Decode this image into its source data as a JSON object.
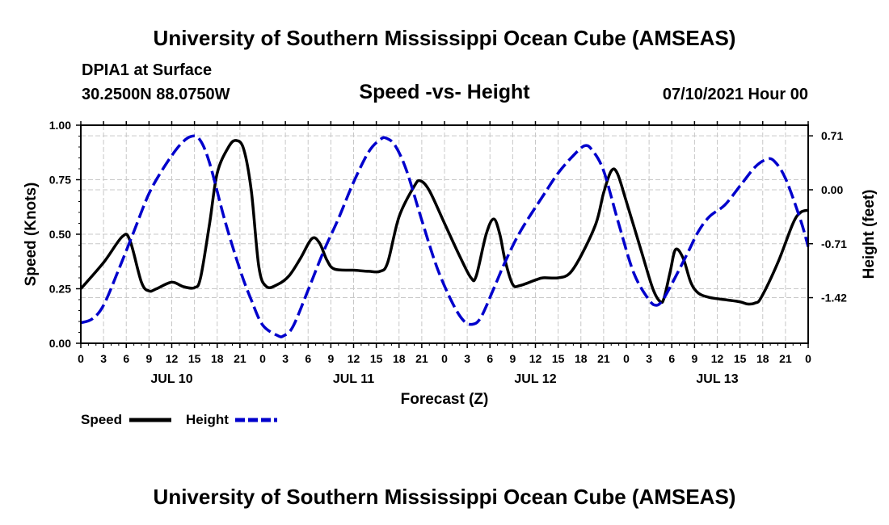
{
  "page": {
    "title": "University of Southern Mississippi Ocean Cube (AMSEAS)",
    "footer_title": "University of Southern Mississippi Ocean Cube (AMSEAS)",
    "station": "DPIA1 at Surface",
    "coords": "30.2500N  88.0750W",
    "subtitle": "Speed -vs- Height",
    "datetime": "07/10/2021 Hour 00"
  },
  "legend": {
    "speed_label": "Speed",
    "height_label": "Height"
  },
  "chart_data": {
    "type": "line",
    "xlabel": "Forecast (Z)",
    "ylabel": "Speed (Knots)",
    "ylabel_right": "Height (feet)",
    "xlim": [
      0,
      96
    ],
    "ylim": [
      0,
      1.0
    ],
    "ylim_right": [
      -2.02,
      0.85
    ],
    "yticks_left": [
      "0.00",
      "0.25",
      "0.50",
      "0.75",
      "1.00"
    ],
    "yticks_left_values": [
      0,
      0.25,
      0.5,
      0.75,
      1.0
    ],
    "yticks_right": [
      "-1.42",
      "-0.71",
      "0.00",
      "0.71"
    ],
    "yticks_right_values": [
      -1.42,
      -0.71,
      0.0,
      0.71
    ],
    "xtick_labels": [
      "0",
      "3",
      "6",
      "9",
      "12",
      "15",
      "18",
      "21",
      "0",
      "3",
      "6",
      "9",
      "12",
      "15",
      "18",
      "21",
      "0",
      "3",
      "6",
      "9",
      "12",
      "15",
      "18",
      "21",
      "0",
      "3",
      "6",
      "9",
      "12",
      "15",
      "18",
      "21",
      "0"
    ],
    "day_labels": [
      {
        "label": "JUL 10",
        "hour": 12
      },
      {
        "label": "JUL 11",
        "hour": 36
      },
      {
        "label": "JUL 12",
        "hour": 60
      },
      {
        "label": "JUL 13",
        "hour": 84
      }
    ],
    "grid": true,
    "series": [
      {
        "name": "Speed",
        "axis": "left",
        "color": "#000000",
        "style": "solid",
        "points": [
          [
            0,
            0.25
          ],
          [
            3,
            0.37
          ],
          [
            5.5,
            0.49
          ],
          [
            6.5,
            0.47
          ],
          [
            8,
            0.28
          ],
          [
            9,
            0.24
          ],
          [
            10,
            0.25
          ],
          [
            12,
            0.28
          ],
          [
            13.5,
            0.26
          ],
          [
            15,
            0.255
          ],
          [
            15.8,
            0.3
          ],
          [
            17,
            0.55
          ],
          [
            18,
            0.78
          ],
          [
            19.5,
            0.9
          ],
          [
            20.5,
            0.93
          ],
          [
            21.5,
            0.89
          ],
          [
            22.5,
            0.7
          ],
          [
            23.5,
            0.35
          ],
          [
            24.5,
            0.26
          ],
          [
            26,
            0.27
          ],
          [
            27.5,
            0.31
          ],
          [
            29,
            0.39
          ],
          [
            30.5,
            0.48
          ],
          [
            31.5,
            0.46
          ],
          [
            32.5,
            0.38
          ],
          [
            33.5,
            0.34
          ],
          [
            36,
            0.335
          ],
          [
            38,
            0.33
          ],
          [
            39.5,
            0.33
          ],
          [
            40.5,
            0.37
          ],
          [
            42,
            0.58
          ],
          [
            44,
            0.72
          ],
          [
            44.8,
            0.745
          ],
          [
            46,
            0.7
          ],
          [
            48,
            0.55
          ],
          [
            50,
            0.4
          ],
          [
            51.5,
            0.3
          ],
          [
            52.2,
            0.31
          ],
          [
            53.5,
            0.5
          ],
          [
            54.5,
            0.57
          ],
          [
            55.3,
            0.5
          ],
          [
            56,
            0.38
          ],
          [
            57,
            0.27
          ],
          [
            58,
            0.265
          ],
          [
            60,
            0.29
          ],
          [
            61,
            0.3
          ],
          [
            63,
            0.3
          ],
          [
            64.5,
            0.32
          ],
          [
            66,
            0.4
          ],
          [
            68,
            0.55
          ],
          [
            69,
            0.69
          ],
          [
            70,
            0.79
          ],
          [
            70.8,
            0.78
          ],
          [
            72,
            0.65
          ],
          [
            74,
            0.42
          ],
          [
            75.5,
            0.25
          ],
          [
            76.5,
            0.19
          ],
          [
            77,
            0.21
          ],
          [
            77.8,
            0.33
          ],
          [
            78.5,
            0.43
          ],
          [
            79.5,
            0.39
          ],
          [
            80.5,
            0.28
          ],
          [
            81.5,
            0.23
          ],
          [
            83,
            0.21
          ],
          [
            85,
            0.2
          ],
          [
            87,
            0.19
          ],
          [
            88,
            0.18
          ],
          [
            89,
            0.185
          ],
          [
            89.8,
            0.21
          ],
          [
            92,
            0.37
          ],
          [
            94,
            0.55
          ],
          [
            95,
            0.6
          ],
          [
            96,
            0.61
          ]
        ]
      },
      {
        "name": "Height",
        "axis": "right",
        "color": "#0000cc",
        "style": "dashed",
        "points": [
          [
            0,
            -1.75
          ],
          [
            1.5,
            -1.7
          ],
          [
            3,
            -1.52
          ],
          [
            5,
            -1.05
          ],
          [
            7,
            -0.55
          ],
          [
            9,
            -0.05
          ],
          [
            11,
            0.3
          ],
          [
            13,
            0.58
          ],
          [
            14.5,
            0.7
          ],
          [
            15.7,
            0.66
          ],
          [
            17,
            0.35
          ],
          [
            19,
            -0.4
          ],
          [
            21,
            -1.05
          ],
          [
            22.5,
            -1.45
          ],
          [
            24,
            -1.78
          ],
          [
            26,
            -1.92
          ],
          [
            26.8,
            -1.92
          ],
          [
            28,
            -1.8
          ],
          [
            30,
            -1.32
          ],
          [
            32,
            -0.82
          ],
          [
            34,
            -0.38
          ],
          [
            36,
            0.1
          ],
          [
            38,
            0.5
          ],
          [
            39.5,
            0.66
          ],
          [
            40.3,
            0.68
          ],
          [
            41.5,
            0.58
          ],
          [
            43,
            0.25
          ],
          [
            45,
            -0.4
          ],
          [
            47,
            -1.02
          ],
          [
            49,
            -1.48
          ],
          [
            50.5,
            -1.72
          ],
          [
            51.7,
            -1.77
          ],
          [
            52.8,
            -1.68
          ],
          [
            54.5,
            -1.3
          ],
          [
            56,
            -0.95
          ],
          [
            58,
            -0.55
          ],
          [
            61,
            -0.08
          ],
          [
            63,
            0.22
          ],
          [
            65,
            0.45
          ],
          [
            66.5,
            0.58
          ],
          [
            67.5,
            0.52
          ],
          [
            69,
            0.25
          ],
          [
            71,
            -0.45
          ],
          [
            73,
            -1.1
          ],
          [
            75,
            -1.45
          ],
          [
            76,
            -1.52
          ],
          [
            76.8,
            -1.45
          ],
          [
            78,
            -1.24
          ],
          [
            80,
            -0.85
          ],
          [
            81.5,
            -0.55
          ],
          [
            83,
            -0.35
          ],
          [
            85,
            -0.2
          ],
          [
            87,
            0.05
          ],
          [
            89,
            0.3
          ],
          [
            90.5,
            0.4
          ],
          [
            91.5,
            0.38
          ],
          [
            93,
            0.15
          ],
          [
            95,
            -0.4
          ],
          [
            96,
            -0.75
          ]
        ]
      }
    ]
  }
}
